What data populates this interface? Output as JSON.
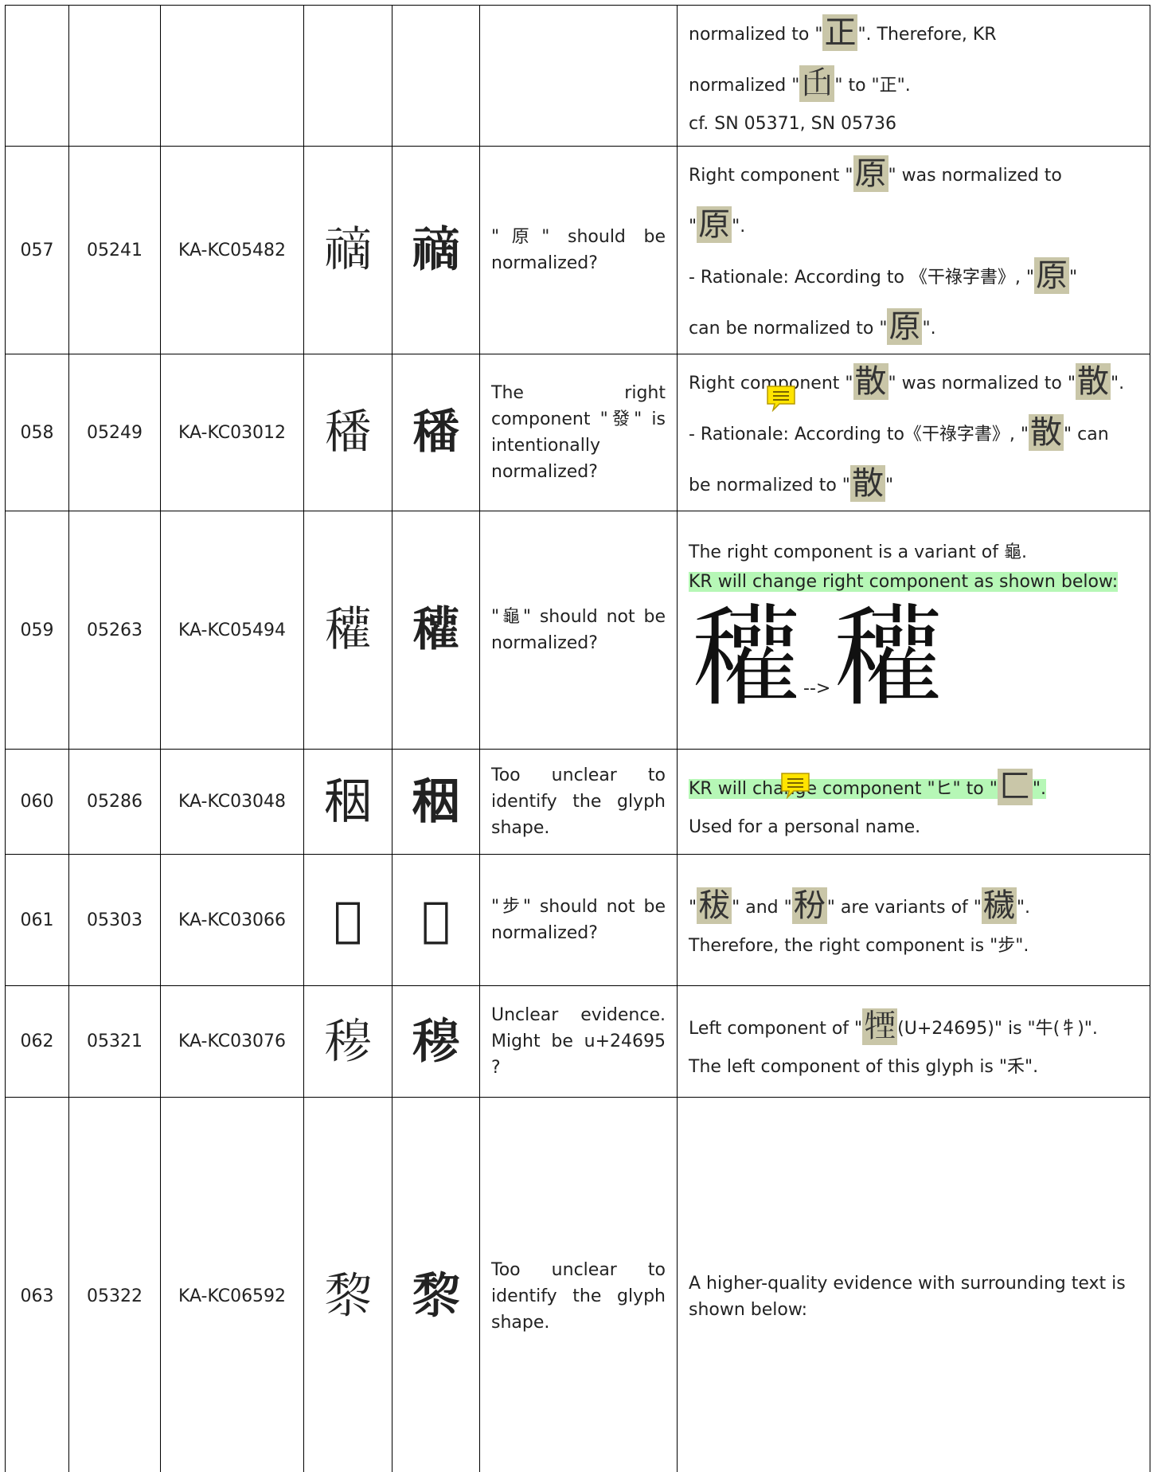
{
  "table": {
    "rows": [
      {
        "notes": [
          {
            "parts": [
              "normalized to \"",
              {
                "glyph": "正"
              },
              "\".   Therefore, KR"
            ]
          },
          {
            "parts": [
              "normalized \"",
              {
                "glyph": "𠙺"
              },
              "\" to \"正\"."
            ]
          },
          {
            "parts": [
              "cf. SN 05371, SN 05736"
            ]
          }
        ]
      },
      {
        "no": "057",
        "sn": "05241",
        "id": "KA-KC05482",
        "glyph_a": "𥛚",
        "glyph_b": "𥛚",
        "question": "\"原\" should be normalized?",
        "notes": [
          {
            "parts": [
              "Right component \"",
              {
                "glyph": "原"
              },
              "\" was normalized to"
            ]
          },
          {
            "parts": [
              "\"",
              {
                "glyph": "原"
              },
              "\"."
            ]
          },
          {
            "parts": [
              "- Rationale: According to 《干祿字書》, \"",
              {
                "glyph": "原"
              },
              "\""
            ]
          },
          {
            "parts": [
              "can be normalized to \"",
              {
                "glyph": "原"
              },
              "\"."
            ]
          }
        ]
      },
      {
        "no": "058",
        "sn": "05249",
        "id": "KA-KC03012",
        "glyph_a": "𥢌",
        "glyph_b": "𥢌",
        "question": "The right component \"發\" is intentionally normalized?",
        "notes": [
          {
            "parts": [
              "Right component \"",
              {
                "glyph": "散"
              },
              "\" was normalized to \"",
              {
                "glyph": "散"
              },
              "\"."
            ]
          },
          {
            "parts": [
              "- Rationale: According to《干祿字書》, \"",
              {
                "glyph": "散"
              },
              "\" can"
            ]
          },
          {
            "parts": [
              "be normalized to \"",
              {
                "glyph": "散"
              },
              "\""
            ]
          }
        ]
      },
      {
        "no": "059",
        "sn": "05263",
        "id": "KA-KC05494",
        "glyph_a": "𥤊",
        "glyph_b": "𥤊",
        "question": "\"龜\" should not be normalized?",
        "notes": [
          {
            "parts": [
              "The right component is a variant of 龜."
            ]
          },
          {
            "highlight": true,
            "parts": [
              "KR will change right component as shown below:"
            ]
          },
          {
            "large": true,
            "parts": [
              {
                "glyph": "𥤊"
              },
              "-->",
              {
                "glyph": "𥤊"
              }
            ]
          }
        ]
      },
      {
        "no": "060",
        "sn": "05286",
        "id": "KA-KC03048",
        "glyph_a": "秵",
        "glyph_b": "秵",
        "question": "Too unclear to identify the glyph shape.",
        "notes": [
          {
            "highlight": true,
            "parts": [
              "KR will change component \"ヒ\" to \"",
              {
                "glyph": "匚"
              },
              "\"."
            ]
          },
          {
            "parts": [
              "Used for a personal name."
            ]
          }
        ]
      },
      {
        "no": "061",
        "sn": "05303",
        "id": "KA-KC03066",
        "glyph_a": "𥞦",
        "glyph_b": "𥞦",
        "question": "\"步\" should not be normalized?",
        "notes": [
          {
            "parts": [
              "\"",
              {
                "glyph": "秡"
              },
              "\" and \"",
              {
                "glyph": "秎"
              },
              "\" are variants of \"",
              {
                "glyph": "穢"
              },
              "\"."
            ]
          },
          {
            "parts": [
              "Therefore, the right component is \"步\"."
            ]
          }
        ]
      },
      {
        "no": "062",
        "sn": "05321",
        "id": "KA-KC03076",
        "glyph_a": "𥠇",
        "glyph_b": "𥠇",
        "question": "Unclear evidence. Might be u+24695 ?",
        "notes": [
          {
            "parts": [
              "Left component of \"",
              {
                "glyph": "𤚕"
              },
              "(U+24695)\" is \"牛(牜)\"."
            ]
          },
          {
            "parts": [
              "The left component of this glyph is \"禾\"."
            ]
          }
        ]
      },
      {
        "no": "063",
        "sn": "05322",
        "id": "KA-KC06592",
        "glyph_a": "𥟖",
        "glyph_b": "𥟖",
        "question": "Too unclear to identify the glyph shape.",
        "notes": [
          {
            "parts": [
              "A higher-quality evidence with surrounding text is shown below:"
            ]
          }
        ]
      }
    ]
  }
}
